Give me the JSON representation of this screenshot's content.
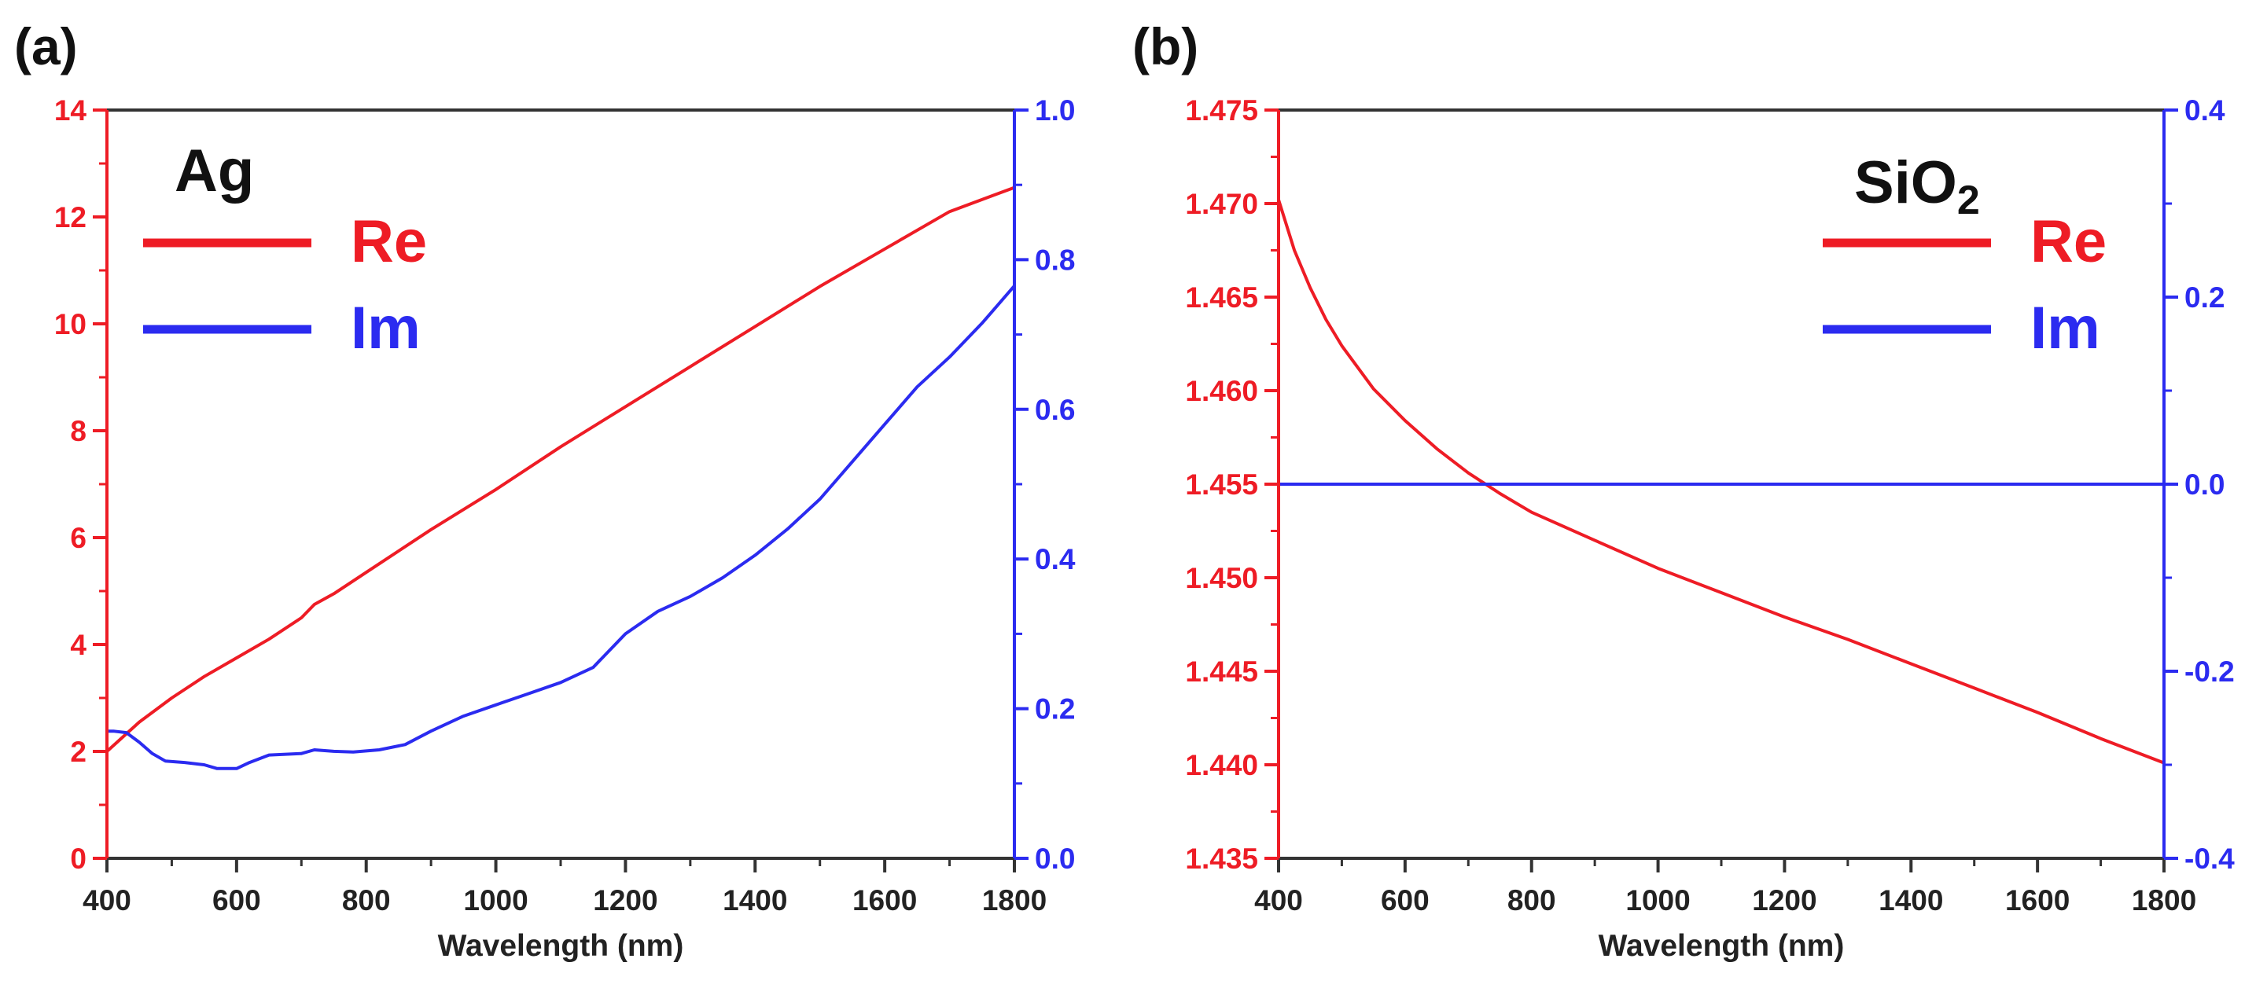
{
  "colors": {
    "re": "#ee1c25",
    "im": "#2b2bf0",
    "axis": "#333333",
    "text": "#222222"
  },
  "chart_data": [
    {
      "type": "line",
      "panel_label": "(a)",
      "material": "Ag",
      "xlabel": "Wavelength (nm)",
      "xlim": [
        400,
        1800
      ],
      "xticks": [
        "400",
        "600",
        "800",
        "1000",
        "1200",
        "1400",
        "1600",
        "1800"
      ],
      "ylim_left": [
        0,
        14
      ],
      "yticks_left": [
        "0",
        "2",
        "4",
        "6",
        "8",
        "10",
        "12",
        "14"
      ],
      "ylim_right": [
        0.0,
        1.0
      ],
      "yticks_right": [
        "0.0",
        "0.2",
        "0.4",
        "0.6",
        "0.8",
        "1.0"
      ],
      "legend": [
        "Re",
        "Im"
      ],
      "series": [
        {
          "name": "Re",
          "axis": "left",
          "color": "#ee1c25",
          "x": [
            400,
            450,
            500,
            550,
            600,
            650,
            700,
            720,
            750,
            800,
            900,
            1000,
            1100,
            1200,
            1300,
            1400,
            1500,
            1600,
            1700,
            1800
          ],
          "y": [
            2.0,
            2.55,
            3.0,
            3.4,
            3.75,
            4.1,
            4.5,
            4.75,
            4.95,
            5.35,
            6.15,
            6.9,
            7.7,
            8.45,
            9.2,
            9.95,
            10.7,
            11.4,
            12.1,
            12.55
          ]
        },
        {
          "name": "Im",
          "axis": "right",
          "color": "#2b2bf0",
          "x": [
            400,
            410,
            430,
            450,
            470,
            490,
            520,
            550,
            570,
            600,
            620,
            650,
            700,
            720,
            750,
            780,
            820,
            860,
            900,
            950,
            1000,
            1050,
            1100,
            1150,
            1200,
            1250,
            1300,
            1350,
            1400,
            1450,
            1500,
            1550,
            1600,
            1650,
            1700,
            1750,
            1800
          ],
          "y": [
            0.17,
            0.17,
            0.168,
            0.155,
            0.14,
            0.13,
            0.128,
            0.125,
            0.12,
            0.12,
            0.128,
            0.138,
            0.14,
            0.145,
            0.143,
            0.142,
            0.145,
            0.152,
            0.17,
            0.19,
            0.205,
            0.22,
            0.235,
            0.255,
            0.3,
            0.33,
            0.35,
            0.375,
            0.405,
            0.44,
            0.48,
            0.53,
            0.58,
            0.63,
            0.67,
            0.715,
            0.765
          ]
        }
      ]
    },
    {
      "type": "line",
      "panel_label": "(b)",
      "material": "SiO",
      "material_sub": "2",
      "xlabel": "Wavelength (nm)",
      "xlim": [
        400,
        1800
      ],
      "xticks": [
        "400",
        "600",
        "800",
        "1000",
        "1200",
        "1400",
        "1600",
        "1800"
      ],
      "ylim_left": [
        1.435,
        1.475
      ],
      "yticks_left": [
        "1.435",
        "1.440",
        "1.445",
        "1.450",
        "1.455",
        "1.460",
        "1.465",
        "1.470",
        "1.475"
      ],
      "ylim_right": [
        -0.4,
        0.4
      ],
      "yticks_right": [
        "-0.4",
        "-0.2",
        "0.0",
        "0.2",
        "0.4"
      ],
      "legend": [
        "Re",
        "Im"
      ],
      "series": [
        {
          "name": "Re",
          "axis": "left",
          "color": "#ee1c25",
          "x": [
            400,
            425,
            450,
            475,
            500,
            550,
            600,
            650,
            700,
            750,
            800,
            900,
            1000,
            1100,
            1200,
            1300,
            1400,
            1500,
            1600,
            1700,
            1800
          ],
          "y": [
            1.4702,
            1.4675,
            1.4655,
            1.4638,
            1.4624,
            1.4601,
            1.4584,
            1.4569,
            1.4556,
            1.4545,
            1.4535,
            1.452,
            1.4505,
            1.4492,
            1.4479,
            1.4467,
            1.4454,
            1.4441,
            1.4428,
            1.4414,
            1.4401
          ]
        },
        {
          "name": "Im",
          "axis": "right",
          "color": "#2b2bf0",
          "x": [
            400,
            1800
          ],
          "y": [
            0.0,
            0.0
          ]
        }
      ]
    }
  ]
}
